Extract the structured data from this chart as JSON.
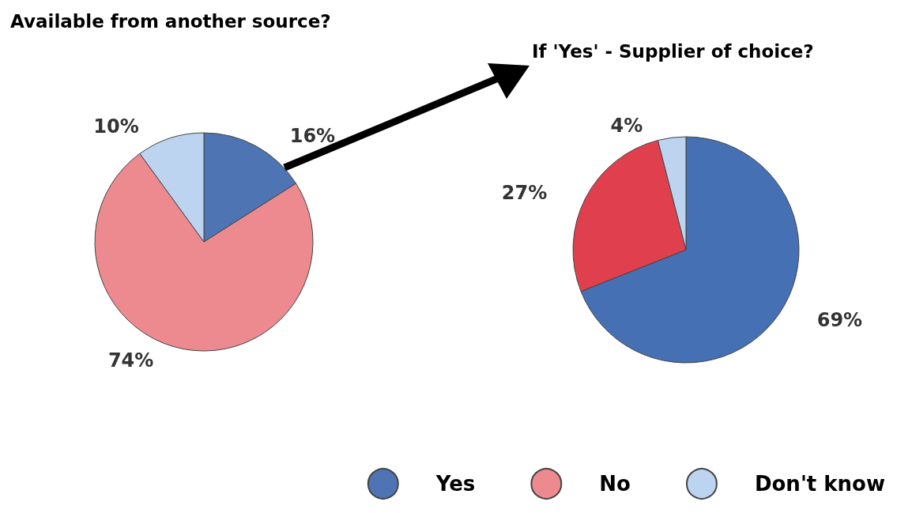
{
  "chart_data": [
    {
      "type": "pie",
      "title": "Available from another source?",
      "categories": [
        "Yes",
        "No",
        "Don't know"
      ],
      "values": [
        16,
        74,
        10
      ],
      "value_labels": [
        "16%",
        "74%",
        "10%"
      ],
      "colors": [
        "#4e74b4",
        "#ec8a90",
        "#bcd4f0"
      ],
      "legend": "bottom right"
    },
    {
      "type": "pie",
      "title": "If 'Yes' - Supplier of choice?",
      "categories": [
        null,
        null,
        null
      ],
      "values": [
        69,
        27,
        4
      ],
      "value_labels": [
        "69%",
        "27%",
        "4%"
      ],
      "colors": [
        "#4670b4",
        "#e0404e",
        "#bcd4f0"
      ]
    }
  ]
}
